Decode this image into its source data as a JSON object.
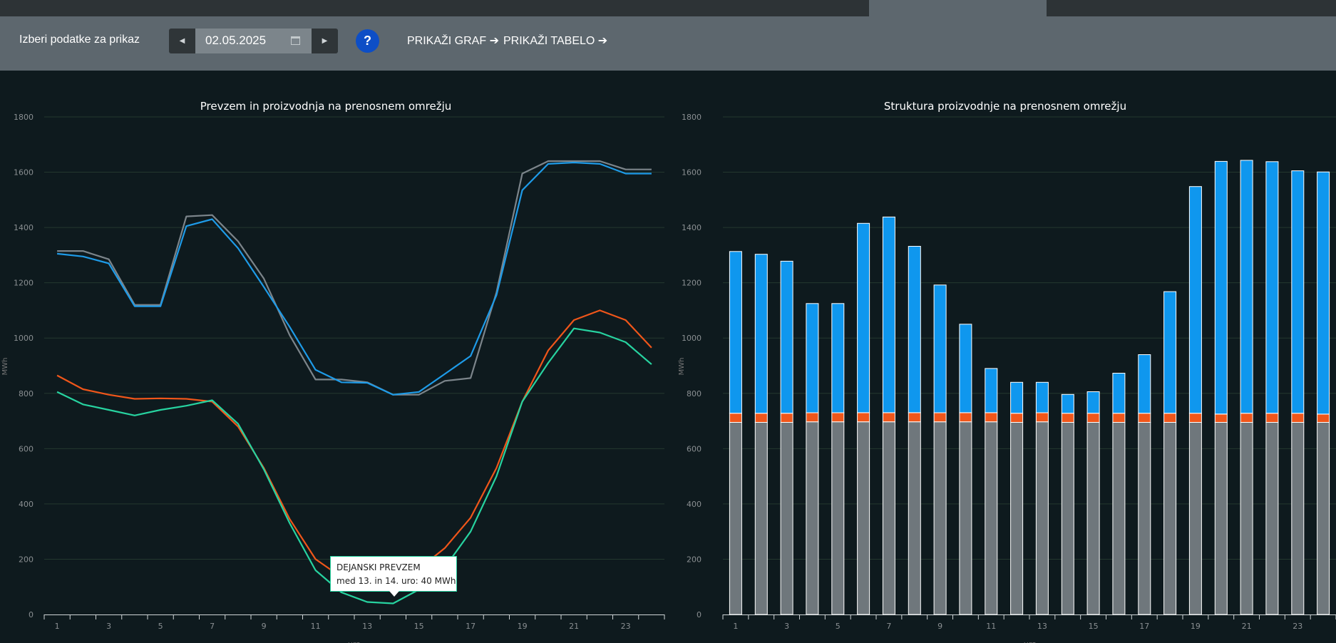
{
  "controls": {
    "label": "Izberi podatke za prikaz",
    "date": "02.05.2025",
    "help": "?",
    "show_graph": "PRIKAŽI GRAF",
    "show_table": "PRIKAŽI TABELO"
  },
  "tooltip": {
    "title": "DEJANSKI PREVZEM",
    "text": "med 13. in 14. uro: 40 MWh"
  },
  "chart_data": [
    {
      "type": "line",
      "title": "Prevzem in proizvodnja na prenosnem omrežju",
      "ylabel": "MWh",
      "xlabel": "ura",
      "ylim": [
        0,
        1800
      ],
      "yticks": [
        0,
        200,
        400,
        600,
        800,
        1000,
        1200,
        1400,
        1600,
        1800
      ],
      "x": [
        1,
        2,
        3,
        4,
        5,
        6,
        7,
        8,
        9,
        10,
        11,
        12,
        13,
        14,
        15,
        16,
        17,
        18,
        19,
        20,
        21,
        22,
        23,
        24
      ],
      "xtick_labels": [
        "1",
        "3",
        "5",
        "7",
        "9",
        "11",
        "13",
        "15",
        "17",
        "19",
        "21",
        "23"
      ],
      "grid": true,
      "series": [
        {
          "color": "#7c858b",
          "values": [
            1315,
            1315,
            1285,
            1120,
            1120,
            1440,
            1445,
            1350,
            1215,
            1010,
            850,
            850,
            840,
            795,
            795,
            845,
            855,
            1165,
            1595,
            1640,
            1640,
            1640,
            1610,
            1610
          ]
        },
        {
          "color": "#1e9be8",
          "values": [
            1305,
            1295,
            1270,
            1115,
            1115,
            1405,
            1430,
            1325,
            1185,
            1040,
            885,
            840,
            838,
            795,
            805,
            870,
            935,
            1155,
            1535,
            1630,
            1635,
            1630,
            1595,
            1595
          ]
        },
        {
          "color": "#f0561a",
          "values": [
            865,
            815,
            795,
            780,
            782,
            780,
            770,
            680,
            530,
            345,
            200,
            135,
            115,
            110,
            165,
            240,
            350,
            530,
            770,
            955,
            1065,
            1100,
            1065,
            965
          ]
        },
        {
          "color": "#27d3a0",
          "values": [
            805,
            760,
            740,
            720,
            740,
            755,
            775,
            690,
            525,
            330,
            160,
            80,
            45,
            40,
            90,
            170,
            300,
            500,
            770,
            910,
            1035,
            1020,
            985,
            905
          ]
        }
      ]
    },
    {
      "type": "bar",
      "stacked": true,
      "title": "Struktura proizvodnje na prenosnem omrežju",
      "ylabel": "MWh",
      "xlabel": "ura",
      "ylim": [
        0,
        1800
      ],
      "yticks": [
        0,
        200,
        400,
        600,
        800,
        1000,
        1200,
        1400,
        1600,
        1800
      ],
      "categories": [
        1,
        2,
        3,
        4,
        5,
        6,
        7,
        8,
        9,
        10,
        11,
        12,
        13,
        14,
        15,
        16,
        17,
        18,
        19,
        20,
        21,
        22,
        23,
        24
      ],
      "xtick_labels": [
        "1",
        "3",
        "5",
        "7",
        "9",
        "11",
        "13",
        "15",
        "17",
        "19",
        "21",
        "23"
      ],
      "grid": true,
      "series": [
        {
          "color": "#6f777c",
          "values": [
            695,
            695,
            695,
            697,
            697,
            697,
            697,
            697,
            697,
            697,
            697,
            695,
            697,
            695,
            695,
            695,
            695,
            695,
            695,
            695,
            695,
            695,
            695,
            695
          ]
        },
        {
          "color": "#f0561a",
          "values": [
            33,
            33,
            33,
            33,
            33,
            33,
            33,
            33,
            33,
            33,
            33,
            33,
            33,
            33,
            33,
            33,
            33,
            33,
            33,
            30,
            33,
            33,
            33,
            30
          ]
        },
        {
          "color": "#0f97ee",
          "values": [
            585,
            575,
            550,
            395,
            395,
            685,
            708,
            602,
            462,
            320,
            160,
            112,
            110,
            68,
            78,
            145,
            212,
            440,
            820,
            914,
            915,
            910,
            877,
            876
          ]
        }
      ]
    }
  ]
}
